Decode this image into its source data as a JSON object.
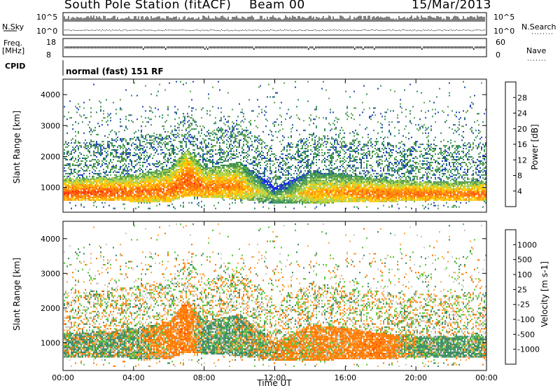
{
  "header": {
    "title": "South Pole Station (fitACF)",
    "beam": "Beam 00",
    "date": "15/Mar/2013"
  },
  "status_panels": {
    "nsky_label": "N.Sky",
    "nsky_ticks": [
      "10^5",
      "10^0"
    ],
    "nsearch_label": "N.Search",
    "nsearch_ticks": [
      "10^5",
      "10^0"
    ],
    "freq_label_1": "Freq.",
    "freq_label_2": "[MHz]",
    "freq_ticks": [
      "18",
      "8"
    ],
    "nave_label": "Nave",
    "nave_ticks": [
      "60",
      "0"
    ],
    "cpid_label": "CPID",
    "cpid_text": "normal (fast) 151 RF"
  },
  "colors": {
    "power_scale": [
      "#0a14f0",
      "#1e46b4",
      "#2d8c5a",
      "#5aa04b",
      "#a8d24b",
      "#ffc800",
      "#ff8c00",
      "#ff5a00",
      "#ff1e00"
    ],
    "velocity_scale": [
      "#1e3cc8",
      "#3264b4",
      "#3c8c64",
      "#5ac83c",
      "#c8c8c8",
      "#ffaa46",
      "#ff7800",
      "#ff4600",
      "#ff1400"
    ]
  },
  "chart_data": [
    {
      "type": "heatmap",
      "title": "",
      "xlabel": "Time UT",
      "ylabel": "Slant Range [km]",
      "x_ticks": [
        "00:00",
        "04:00",
        "08:00",
        "12:00",
        "16:00",
        "20:00",
        "00:00"
      ],
      "y_ticks": [
        "1000",
        "2000",
        "3000",
        "4000"
      ],
      "ylim": [
        200,
        4500
      ],
      "colorbar_label": "Power [dB]",
      "colorbar_ticks": [
        "4",
        "8",
        "12",
        "16",
        "20",
        "24",
        "28"
      ],
      "colorbar_range": [
        0,
        32
      ],
      "echo_band": {
        "hours": [
          0,
          2,
          4,
          6,
          7,
          8,
          10,
          12,
          14,
          16,
          18,
          20,
          22,
          24
        ],
        "lower_km": [
          550,
          560,
          520,
          500,
          700,
          650,
          600,
          450,
          450,
          500,
          500,
          550,
          550,
          550
        ],
        "upper_km": [
          1250,
          1300,
          1400,
          1600,
          2200,
          1600,
          1800,
          1000,
          1500,
          1400,
          1250,
          1200,
          1150,
          1200
        ],
        "peak_db": [
          28,
          28,
          26,
          26,
          28,
          26,
          24,
          14,
          22,
          24,
          26,
          26,
          26,
          26
        ]
      }
    },
    {
      "type": "heatmap",
      "title": "",
      "xlabel": "Time UT",
      "ylabel": "Slant Range [km]",
      "x_ticks": [
        "00:00",
        "04:00",
        "08:00",
        "12:00",
        "16:00",
        "20:00",
        "00:00"
      ],
      "y_ticks": [
        "1000",
        "2000",
        "3000",
        "4000"
      ],
      "ylim": [
        200,
        4500
      ],
      "colorbar_label": "Velocity [m s-1]",
      "colorbar_ticks": [
        "1000",
        "500",
        "100",
        "25",
        "-25",
        "-100",
        "-500",
        "-1000"
      ],
      "echo_band": {
        "hours": [
          0,
          2,
          4,
          6,
          7,
          8,
          10,
          12,
          14,
          16,
          18,
          20,
          22,
          24
        ],
        "lower_km": [
          550,
          560,
          520,
          500,
          700,
          650,
          600,
          450,
          450,
          500,
          500,
          550,
          550,
          550
        ],
        "upper_km": [
          1250,
          1300,
          1400,
          1600,
          2200,
          1600,
          1800,
          1000,
          1500,
          1400,
          1250,
          1200,
          1150,
          1200
        ],
        "mean_velocity": [
          80,
          90,
          100,
          -200,
          -300,
          150,
          100,
          -100,
          -150,
          -200,
          -300,
          100,
          200,
          80
        ]
      }
    }
  ]
}
